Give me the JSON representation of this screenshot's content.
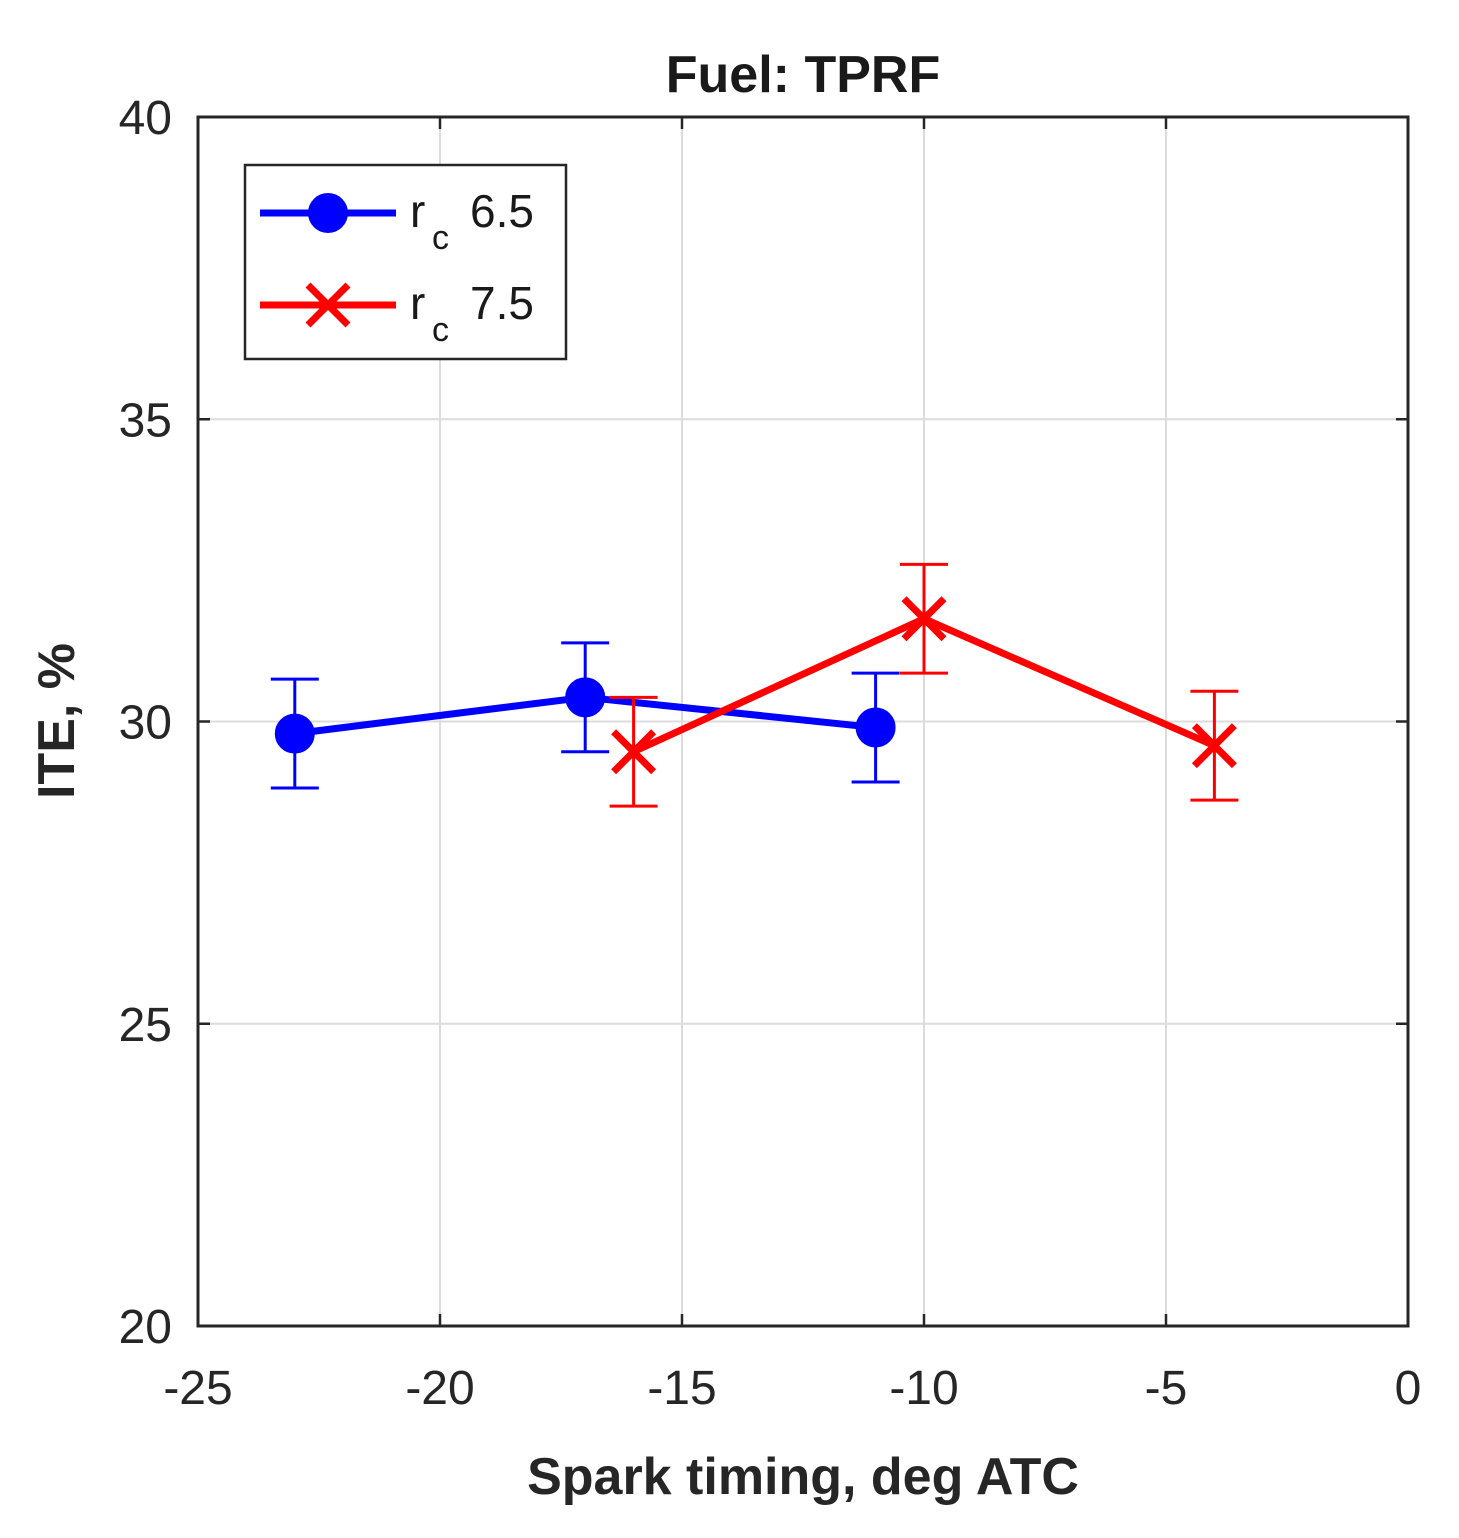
{
  "chart_data": {
    "type": "line",
    "title": "Fuel: TPRF",
    "xlabel": "Spark timing, deg ATC",
    "ylabel": "ITE, %",
    "xlim": [
      -25,
      0
    ],
    "ylim": [
      20,
      40
    ],
    "xticks": [
      -25,
      -20,
      -15,
      -10,
      -5,
      0
    ],
    "yticks": [
      20,
      25,
      30,
      35,
      40
    ],
    "xtick_labels": [
      "-25",
      "-20",
      "-15",
      "-10",
      "-5",
      "0"
    ],
    "ytick_labels": [
      "20",
      "25",
      "30",
      "35",
      "40"
    ],
    "grid": true,
    "legend_position": "top-left",
    "series": [
      {
        "name": "r_c 6.5",
        "legend_base": "r",
        "legend_sub": "c",
        "legend_value": "6.5",
        "color": "#0000ff",
        "marker": "circle",
        "x": [
          -23,
          -17,
          -11
        ],
        "y": [
          29.8,
          30.4,
          29.9
        ],
        "err": [
          0.9,
          0.9,
          0.9
        ]
      },
      {
        "name": "r_c 7.5",
        "legend_base": "r",
        "legend_sub": "c",
        "legend_value": "7.5",
        "color": "#ff0000",
        "marker": "x",
        "x": [
          -16,
          -10,
          -4
        ],
        "y": [
          29.5,
          31.7,
          29.6
        ],
        "err": [
          0.9,
          0.9,
          0.9
        ]
      }
    ]
  }
}
